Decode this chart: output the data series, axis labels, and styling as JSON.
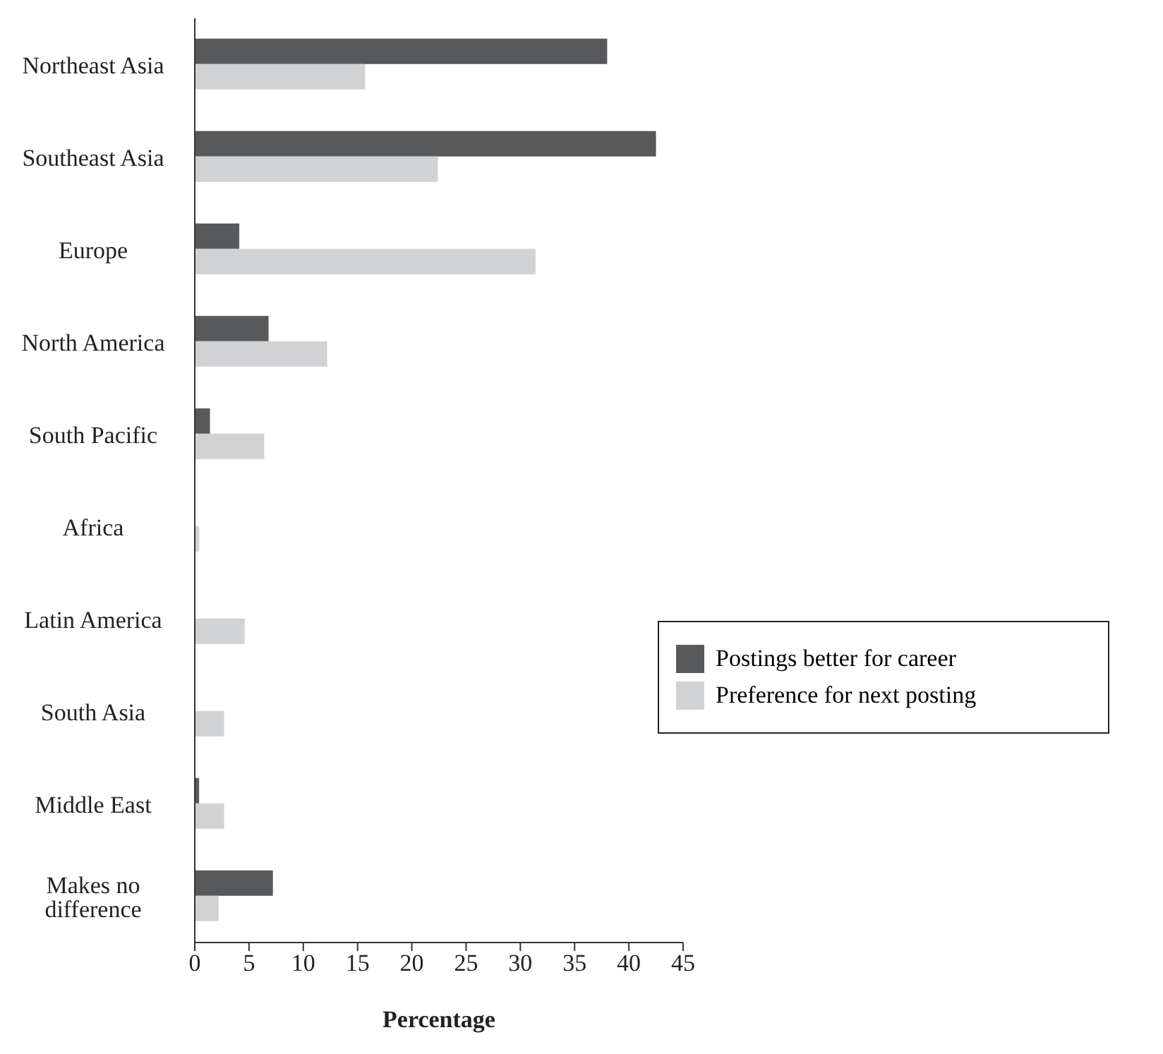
{
  "chart_data": {
    "type": "bar",
    "orientation": "horizontal",
    "xlabel": "Percentage",
    "categories": [
      "Northeast Asia",
      "Southeast Asia",
      "Europe",
      "North America",
      "South Pacific",
      "Africa",
      "Latin America",
      "South Asia",
      "Middle East",
      "Makes no difference"
    ],
    "series": [
      {
        "name": "Postings better for career",
        "color": "#58595b",
        "values": [
          38.0,
          42.5,
          4.1,
          6.8,
          1.4,
          0,
          0,
          0,
          0.4,
          7.2
        ]
      },
      {
        "name": "Preference for next posting",
        "color": "#d1d2d4",
        "values": [
          15.7,
          22.4,
          31.4,
          12.2,
          6.4,
          0.4,
          4.6,
          2.7,
          2.7,
          2.2
        ]
      }
    ],
    "xlim": [
      0,
      45
    ],
    "xticks": [
      0,
      5,
      10,
      15,
      20,
      25,
      30,
      35,
      40,
      45
    ],
    "grid": false,
    "legend": "right"
  }
}
